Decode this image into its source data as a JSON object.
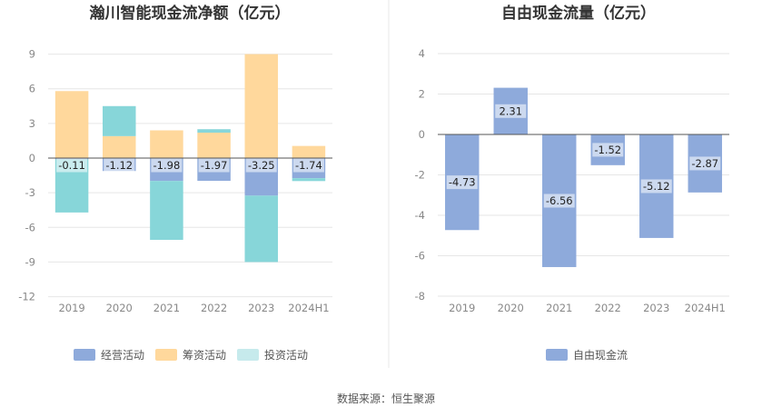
{
  "source": "数据来源：恒生聚源",
  "chart_data": [
    {
      "type": "bar",
      "stacked": true,
      "title": "瀚川智能现金流净额（亿元）",
      "categories": [
        "2019",
        "2020",
        "2021",
        "2022",
        "2023",
        "2024H1"
      ],
      "ylim": [
        -12,
        9
      ],
      "yticks": [
        "9",
        "6",
        "3",
        "0",
        "-3",
        "-6",
        "-9",
        "-12"
      ],
      "grid": true,
      "legend_position": "bottom",
      "series": [
        {
          "name": "经营活动",
          "color": "#8eaadb",
          "values": [
            -0.11,
            -1.12,
            -1.98,
            -1.97,
            -3.25,
            -1.74
          ],
          "labels": [
            "-0.11",
            "-1.12",
            "-1.98",
            "-1.97",
            "-3.25",
            "-1.74"
          ]
        },
        {
          "name": "筹资活动",
          "color": "#ffd89c",
          "values": [
            5.8,
            1.9,
            2.4,
            2.2,
            9.0,
            1.05
          ]
        },
        {
          "name": "投资活动",
          "color": "#87d6d9",
          "legend_color": "#c6eaec",
          "values": [
            -4.6,
            2.6,
            -5.1,
            0.3,
            -5.75,
            -0.25
          ]
        }
      ]
    },
    {
      "type": "bar",
      "title": "自由现金流量（亿元）",
      "categories": [
        "2019",
        "2020",
        "2021",
        "2022",
        "2023",
        "2024H1"
      ],
      "ylim": [
        -8,
        4
      ],
      "yticks": [
        "4",
        "2",
        "0",
        "-2",
        "-4",
        "-6",
        "-8"
      ],
      "grid": true,
      "legend_position": "bottom",
      "series": [
        {
          "name": "自由现金流",
          "color": "#8eaadb",
          "values": [
            -4.73,
            2.31,
            -6.56,
            -1.52,
            -5.12,
            -2.87
          ],
          "labels": [
            "-4.73",
            "2.31",
            "-6.56",
            "-1.52",
            "-5.12",
            "-2.87"
          ]
        }
      ]
    }
  ]
}
